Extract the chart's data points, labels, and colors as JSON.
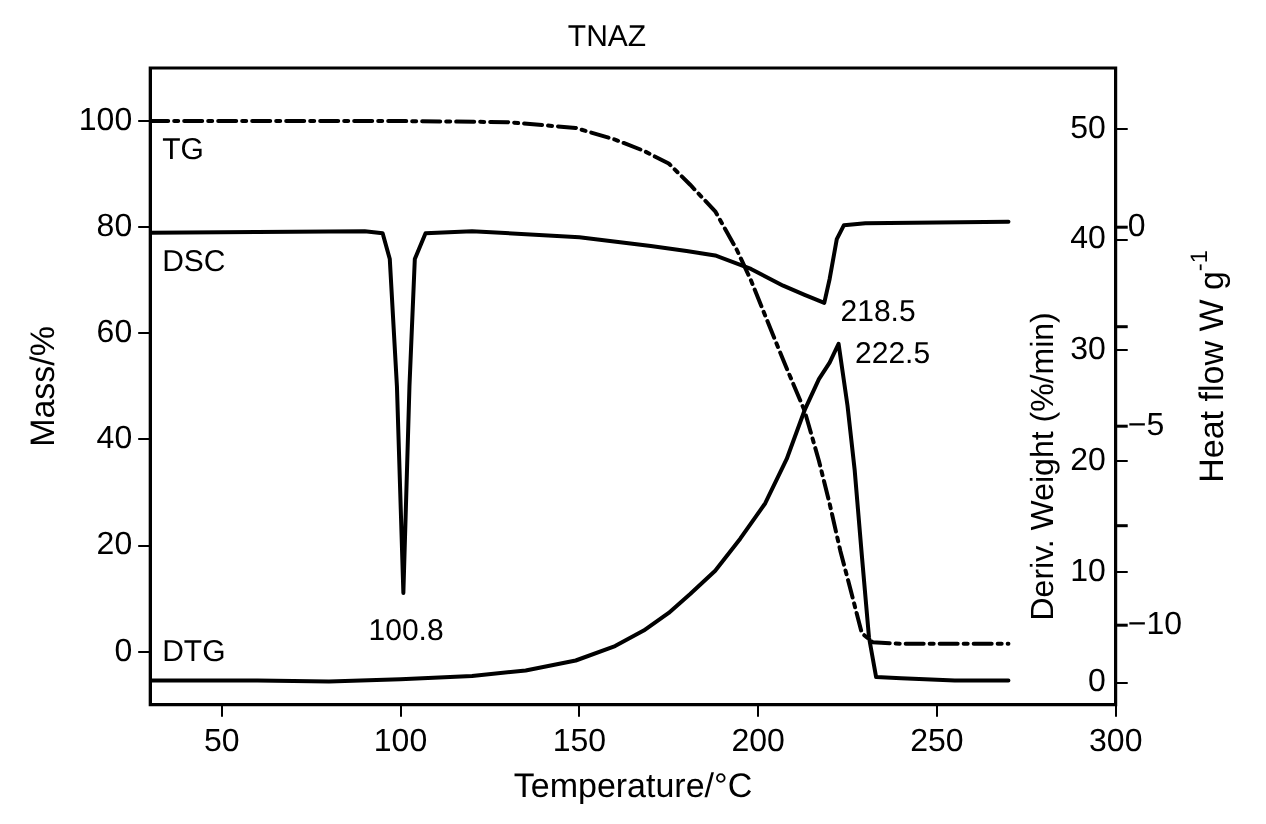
{
  "chart_data": {
    "type": "line",
    "title": "TNAZ",
    "xlabel": "Temperature/°C",
    "ylabel": "Mass/%",
    "y2label": "Deriv. Weight (%/min)",
    "y3label": "Heat flow W g$^{-1}$",
    "xlim": [
      30,
      300
    ],
    "xticks": [
      50,
      100,
      150,
      200,
      250,
      300
    ],
    "ylim": [
      -10,
      110
    ],
    "yticks": [
      0,
      20,
      40,
      60,
      80,
      100
    ],
    "y2lim": [
      -2,
      55.5
    ],
    "y2ticks": [
      0,
      10,
      20,
      30,
      40,
      50
    ],
    "y3lim": [
      -12,
      4
    ],
    "y3ticks": [
      {
        "value": 0,
        "label": "0"
      },
      {
        "value": -2.5,
        "label": null
      },
      {
        "value": -5,
        "label": "−5"
      },
      {
        "value": -7.5,
        "label": null
      },
      {
        "value": -10,
        "label": "−10"
      }
    ],
    "grid": false,
    "legend": false,
    "marker": "none",
    "series": [
      {
        "name": "TG",
        "color": "#000000",
        "line_style": "dashed",
        "x": [
          30,
          60,
          100,
          130,
          149,
          160,
          168,
          175,
          181,
          188,
          194,
          198,
          202,
          207,
          213,
          217,
          220,
          223,
          226,
          229,
          232,
          240,
          255,
          270
        ],
        "values": [
          100,
          100,
          100,
          99.8,
          98.7,
          96.5,
          94.4,
          92,
          88,
          83,
          75.8,
          70,
          63.3,
          55,
          45.4,
          36,
          27.9,
          19,
          11.3,
          3.5,
          1.8,
          1.5,
          1.5,
          1.5
        ]
      },
      {
        "name": "DSC",
        "color": "#000000",
        "axis": "y3",
        "x": [
          30,
          60,
          90,
          95,
          97,
          99,
          100.8,
          102.5,
          104,
          107,
          120,
          150,
          170,
          180,
          188,
          198,
          207,
          213,
          218.5,
          220,
          222,
          224,
          230,
          250,
          270
        ],
        "values": [
          -0.14,
          -0.12,
          -0.1,
          -0.15,
          -0.8,
          -4,
          -9.19,
          -4,
          -0.8,
          -0.15,
          -0.1,
          -0.25,
          -0.47,
          -0.6,
          -0.71,
          -1.05,
          -1.47,
          -1.7,
          -1.9,
          -1.3,
          -0.3,
          0.05,
          0.1,
          0.12,
          0.14
        ]
      },
      {
        "name": "DTG",
        "color": "#000000",
        "axis": "y2",
        "x": [
          30,
          60,
          80,
          100,
          120,
          135,
          149,
          160,
          168,
          175,
          181,
          188,
          195,
          202,
          208,
          213,
          217,
          220,
          222.5,
          225,
          227,
          229,
          231,
          233,
          240,
          255,
          270
        ],
        "values": [
          0.2,
          0.2,
          0.1,
          0.3,
          0.6,
          1.1,
          2,
          3.3,
          4.7,
          6.3,
          8,
          10.1,
          13,
          16.2,
          20.2,
          24.6,
          27.4,
          28.9,
          30.6,
          25,
          19.2,
          11.5,
          4.1,
          0.5,
          0.4,
          0.2,
          0.2
        ]
      }
    ],
    "annotations": [
      "100.8",
      "218.5",
      "222.5"
    ]
  }
}
